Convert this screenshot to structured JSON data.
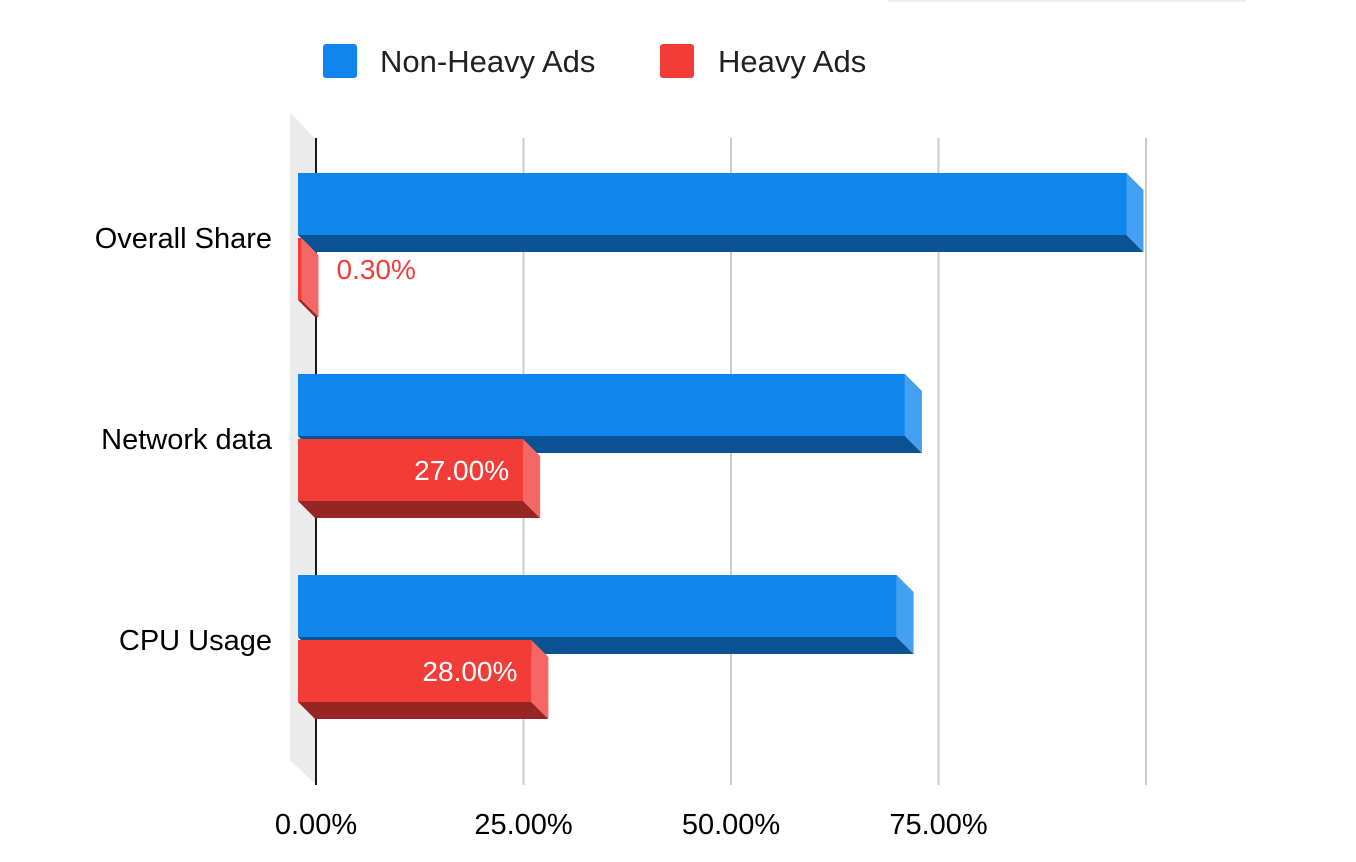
{
  "chart_data": {
    "type": "bar",
    "orientation": "horizontal",
    "style": "3d",
    "categories": [
      "Overall Share",
      "Network data",
      "CPU Usage"
    ],
    "series": [
      {
        "name": "Non-Heavy Ads",
        "values": [
          99.7,
          73.0,
          72.0
        ],
        "color": "#0f86ee",
        "labels": [
          "",
          "",
          ""
        ]
      },
      {
        "name": "Heavy Ads",
        "values": [
          0.3,
          27.0,
          28.0
        ],
        "color": "#f23c38",
        "labels": [
          "0.30%",
          "27.00%",
          "28.00%"
        ]
      }
    ],
    "xticks": [
      "0.00%",
      "25.00%",
      "50.00%",
      "75.00%"
    ],
    "xlim": [
      0,
      100
    ],
    "grid": true,
    "legend": "top",
    "title": "",
    "xlabel": "",
    "ylabel": ""
  }
}
